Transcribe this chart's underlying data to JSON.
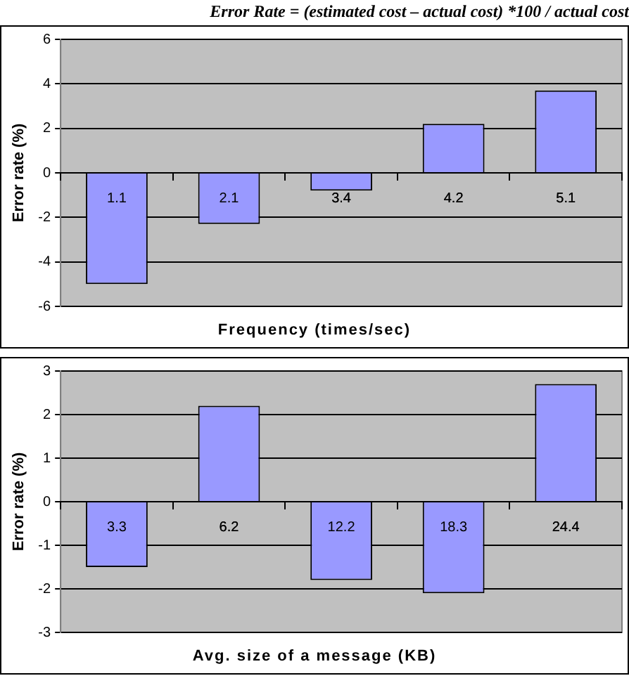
{
  "chart_data": [
    {
      "type": "bar",
      "title": "Error Rate = (estimated cost – actual cost) *100 / actual cost",
      "categories": [
        "1.1",
        "2.1",
        "3.4",
        "4.2",
        "5.1"
      ],
      "values": [
        -5.0,
        -2.3,
        -0.8,
        2.2,
        3.7
      ],
      "color": "#9999ff",
      "ylim": [
        -6,
        6
      ],
      "yticks": [
        -6,
        -4,
        -2,
        0,
        2,
        4,
        6
      ],
      "xlabel": "Frequency (times/sec)",
      "ylabel": "Error rate (%)",
      "grid": "y",
      "legend": false
    },
    {
      "type": "bar",
      "categories": [
        "3.3",
        "6.2",
        "12.2",
        "18.3",
        "24.4"
      ],
      "values": [
        -1.5,
        2.2,
        -1.8,
        -2.1,
        2.7
      ],
      "color": "#9999ff",
      "ylim": [
        -3,
        3
      ],
      "yticks": [
        -3,
        -2,
        -1,
        0,
        1,
        2,
        3
      ],
      "xlabel": "Avg. size of a message (KB)",
      "ylabel": "Error rate (%)",
      "grid": "y",
      "legend": false
    }
  ]
}
